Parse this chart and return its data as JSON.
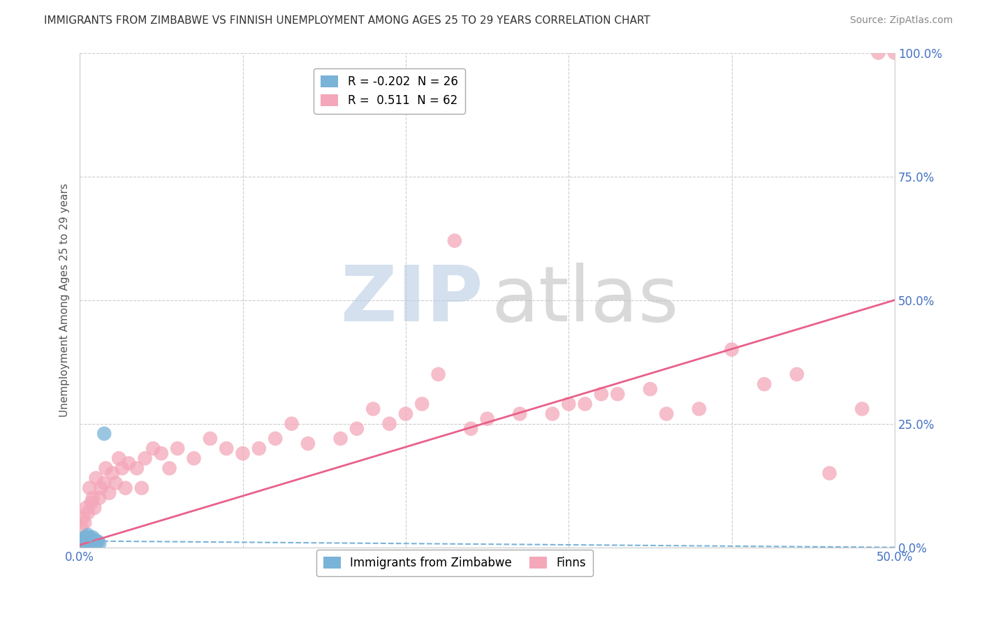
{
  "title": "IMMIGRANTS FROM ZIMBABWE VS FINNISH UNEMPLOYMENT AMONG AGES 25 TO 29 YEARS CORRELATION CHART",
  "source": "Source: ZipAtlas.com",
  "ylabel": "Unemployment Among Ages 25 to 29 years",
  "xlim": [
    0.0,
    0.5
  ],
  "ylim": [
    0.0,
    1.0
  ],
  "xticks": [
    0.0,
    0.1,
    0.2,
    0.3,
    0.4,
    0.5
  ],
  "yticks": [
    0.0,
    0.25,
    0.5,
    0.75,
    1.0
  ],
  "xticklabels_show": [
    "0.0%",
    "",
    "",
    "",
    "",
    "50.0%"
  ],
  "yticklabels": [
    "0.0%",
    "25.0%",
    "50.0%",
    "75.0%",
    "100.0%"
  ],
  "legend_labels": [
    "Immigrants from Zimbabwe",
    "Finns"
  ],
  "blue_color": "#7ab3d8",
  "pink_color": "#f4a7b9",
  "blue_R": -0.202,
  "blue_N": 26,
  "pink_R": 0.511,
  "pink_N": 62,
  "blue_scatter_x": [
    0.001,
    0.001,
    0.002,
    0.002,
    0.002,
    0.003,
    0.003,
    0.003,
    0.003,
    0.004,
    0.004,
    0.004,
    0.005,
    0.005,
    0.005,
    0.006,
    0.006,
    0.007,
    0.007,
    0.008,
    0.008,
    0.009,
    0.01,
    0.011,
    0.012,
    0.015
  ],
  "blue_scatter_y": [
    0.005,
    0.01,
    0.005,
    0.01,
    0.015,
    0.005,
    0.008,
    0.012,
    0.02,
    0.008,
    0.015,
    0.02,
    0.005,
    0.01,
    0.025,
    0.01,
    0.02,
    0.008,
    0.015,
    0.01,
    0.02,
    0.015,
    0.01,
    0.012,
    0.008,
    0.23
  ],
  "pink_scatter_x": [
    0.001,
    0.002,
    0.003,
    0.004,
    0.005,
    0.006,
    0.007,
    0.008,
    0.009,
    0.01,
    0.012,
    0.013,
    0.015,
    0.016,
    0.018,
    0.02,
    0.022,
    0.024,
    0.026,
    0.028,
    0.03,
    0.035,
    0.038,
    0.04,
    0.045,
    0.05,
    0.055,
    0.06,
    0.07,
    0.08,
    0.09,
    0.1,
    0.11,
    0.12,
    0.13,
    0.14,
    0.16,
    0.17,
    0.18,
    0.19,
    0.2,
    0.21,
    0.22,
    0.23,
    0.24,
    0.25,
    0.27,
    0.29,
    0.3,
    0.31,
    0.32,
    0.33,
    0.35,
    0.36,
    0.38,
    0.4,
    0.42,
    0.44,
    0.46,
    0.48,
    0.49,
    0.5
  ],
  "pink_scatter_y": [
    0.04,
    0.06,
    0.05,
    0.08,
    0.07,
    0.12,
    0.09,
    0.1,
    0.08,
    0.14,
    0.1,
    0.12,
    0.13,
    0.16,
    0.11,
    0.15,
    0.13,
    0.18,
    0.16,
    0.12,
    0.17,
    0.16,
    0.12,
    0.18,
    0.2,
    0.19,
    0.16,
    0.2,
    0.18,
    0.22,
    0.2,
    0.19,
    0.2,
    0.22,
    0.25,
    0.21,
    0.22,
    0.24,
    0.28,
    0.25,
    0.27,
    0.29,
    0.35,
    0.62,
    0.24,
    0.26,
    0.27,
    0.27,
    0.29,
    0.29,
    0.31,
    0.31,
    0.32,
    0.27,
    0.28,
    0.4,
    0.33,
    0.35,
    0.15,
    0.28,
    1.0,
    1.0
  ],
  "pink_line_x0": 0.0,
  "pink_line_y0": 0.005,
  "pink_line_x1": 0.5,
  "pink_line_y1": 0.5,
  "blue_line_x0": 0.0,
  "blue_line_y0": 0.013,
  "blue_line_x1": 0.5,
  "blue_line_y1": 0.0,
  "background_color": "#ffffff",
  "grid_color": "#cccccc",
  "title_fontsize": 11,
  "axis_label_fontsize": 11,
  "tick_fontsize": 12,
  "source_fontsize": 10,
  "tick_color": "#4472c4"
}
